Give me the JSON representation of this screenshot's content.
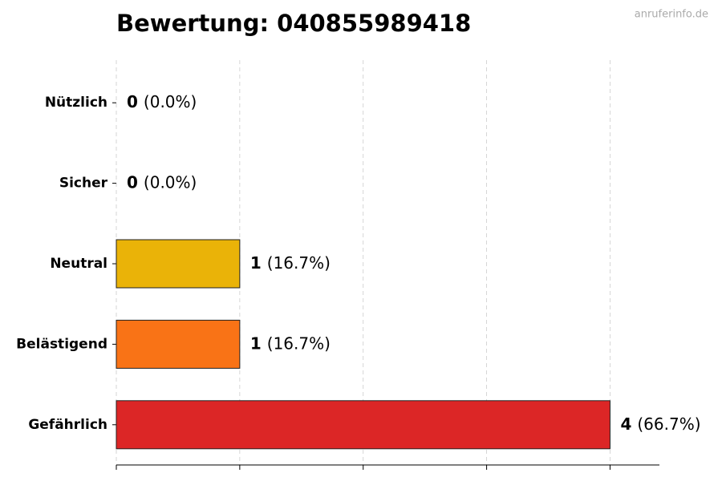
{
  "chart_data": {
    "type": "barh",
    "title": "Bewertung: 040855989418",
    "watermark": "anruferinfo.de",
    "categories": [
      "Nützlich",
      "Sicher",
      "Neutral",
      "Belästigend",
      "Gefährlich"
    ],
    "values": [
      0,
      0,
      1,
      1,
      4
    ],
    "share_labels": [
      "(0.0%)",
      "(0.0%)",
      "(16.7%)",
      "(16.7%)",
      "(66.7%)"
    ],
    "colors": [
      "#22c55e",
      "#3b82f6",
      "#eab308",
      "#f97316",
      "#dc2626"
    ],
    "xlim": [
      0,
      4.4
    ],
    "xticks": [
      0,
      1,
      2,
      3,
      4
    ],
    "grid": true
  }
}
